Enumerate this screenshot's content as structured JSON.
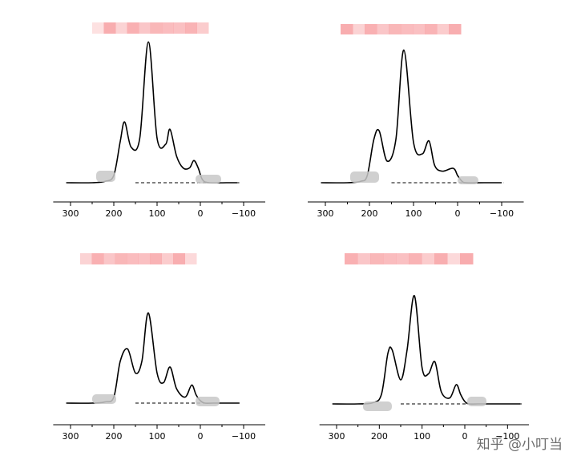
{
  "watermark": "知乎 @小叮当",
  "colors": {
    "curve": "#000000",
    "axis": "#000000",
    "baseline": "#000000",
    "redaction_pink": "#f8a8aa",
    "redaction_gray": "#c8c8c8"
  },
  "chart_data": [
    {
      "type": "line",
      "title": "",
      "xlabel": "",
      "ylabel": "",
      "xlim": [
        340,
        -150
      ],
      "x_reversed": true,
      "x_ticks": [
        "300",
        "200",
        "100",
        "0",
        "−100"
      ],
      "x_tick_values": [
        300,
        200,
        100,
        0,
        -100
      ],
      "baseline_dashed": true,
      "series": [
        {
          "x": [
            310,
            250,
            220,
            200,
            185,
            175,
            160,
            140,
            120,
            100,
            80,
            70,
            55,
            40,
            25,
            15,
            5,
            -5,
            -20,
            -60,
            -85
          ],
          "y": [
            0,
            0,
            0.01,
            0.05,
            0.28,
            0.41,
            0.24,
            0.3,
            0.95,
            0.3,
            0.26,
            0.36,
            0.18,
            0.1,
            0.1,
            0.15,
            0.1,
            0.02,
            0,
            0,
            0
          ]
        }
      ]
    },
    {
      "type": "line",
      "title": "",
      "xlabel": "",
      "ylabel": "",
      "xlim": [
        340,
        -150
      ],
      "x_reversed": true,
      "x_ticks": [
        "300",
        "200",
        "100",
        "0",
        "−100"
      ],
      "x_tick_values": [
        300,
        200,
        100,
        0,
        -100
      ],
      "baseline_dashed": true,
      "series": [
        {
          "x": [
            310,
            250,
            220,
            205,
            190,
            178,
            160,
            140,
            122,
            100,
            80,
            65,
            52,
            35,
            10,
            0,
            -10,
            -20,
            -60,
            -100
          ],
          "y": [
            0,
            0,
            0.01,
            0.05,
            0.3,
            0.36,
            0.15,
            0.3,
            0.92,
            0.28,
            0.2,
            0.29,
            0.12,
            0.08,
            0.1,
            0.05,
            0.01,
            0,
            0,
            0
          ]
        }
      ]
    },
    {
      "type": "line",
      "title": "",
      "xlabel": "",
      "ylabel": "",
      "xlim": [
        340,
        -150
      ],
      "x_reversed": true,
      "x_ticks": [
        "300",
        "200",
        "100",
        "0",
        "−100"
      ],
      "x_tick_values": [
        300,
        200,
        100,
        0,
        -100
      ],
      "baseline_dashed": true,
      "series": [
        {
          "x": [
            310,
            250,
            220,
            200,
            185,
            168,
            150,
            135,
            120,
            100,
            85,
            70,
            55,
            35,
            20,
            10,
            0,
            -10,
            -30,
            -60,
            -90
          ],
          "y": [
            0,
            0,
            0.01,
            0.05,
            0.35,
            0.45,
            0.25,
            0.35,
            0.75,
            0.25,
            0.17,
            0.3,
            0.12,
            0.05,
            0.15,
            0.07,
            0.02,
            0,
            0,
            0,
            0
          ]
        }
      ]
    },
    {
      "type": "line",
      "title": "",
      "xlabel": "",
      "ylabel": "",
      "xlim": [
        340,
        -150
      ],
      "x_reversed": true,
      "x_ticks": [
        "300",
        "200",
        "100",
        "0",
        "−100"
      ],
      "x_tick_values": [
        300,
        200,
        100,
        0,
        -100
      ],
      "baseline_dashed": true,
      "series": [
        {
          "x": [
            310,
            250,
            215,
            195,
            180,
            170,
            150,
            135,
            118,
            100,
            85,
            70,
            55,
            35,
            20,
            10,
            0,
            -10,
            -30,
            -80,
            -130
          ],
          "y": [
            0,
            0,
            0.01,
            0.08,
            0.42,
            0.45,
            0.2,
            0.45,
            0.9,
            0.3,
            0.25,
            0.35,
            0.1,
            0.05,
            0.16,
            0.08,
            0.02,
            0,
            0,
            0,
            0
          ]
        }
      ]
    }
  ]
}
